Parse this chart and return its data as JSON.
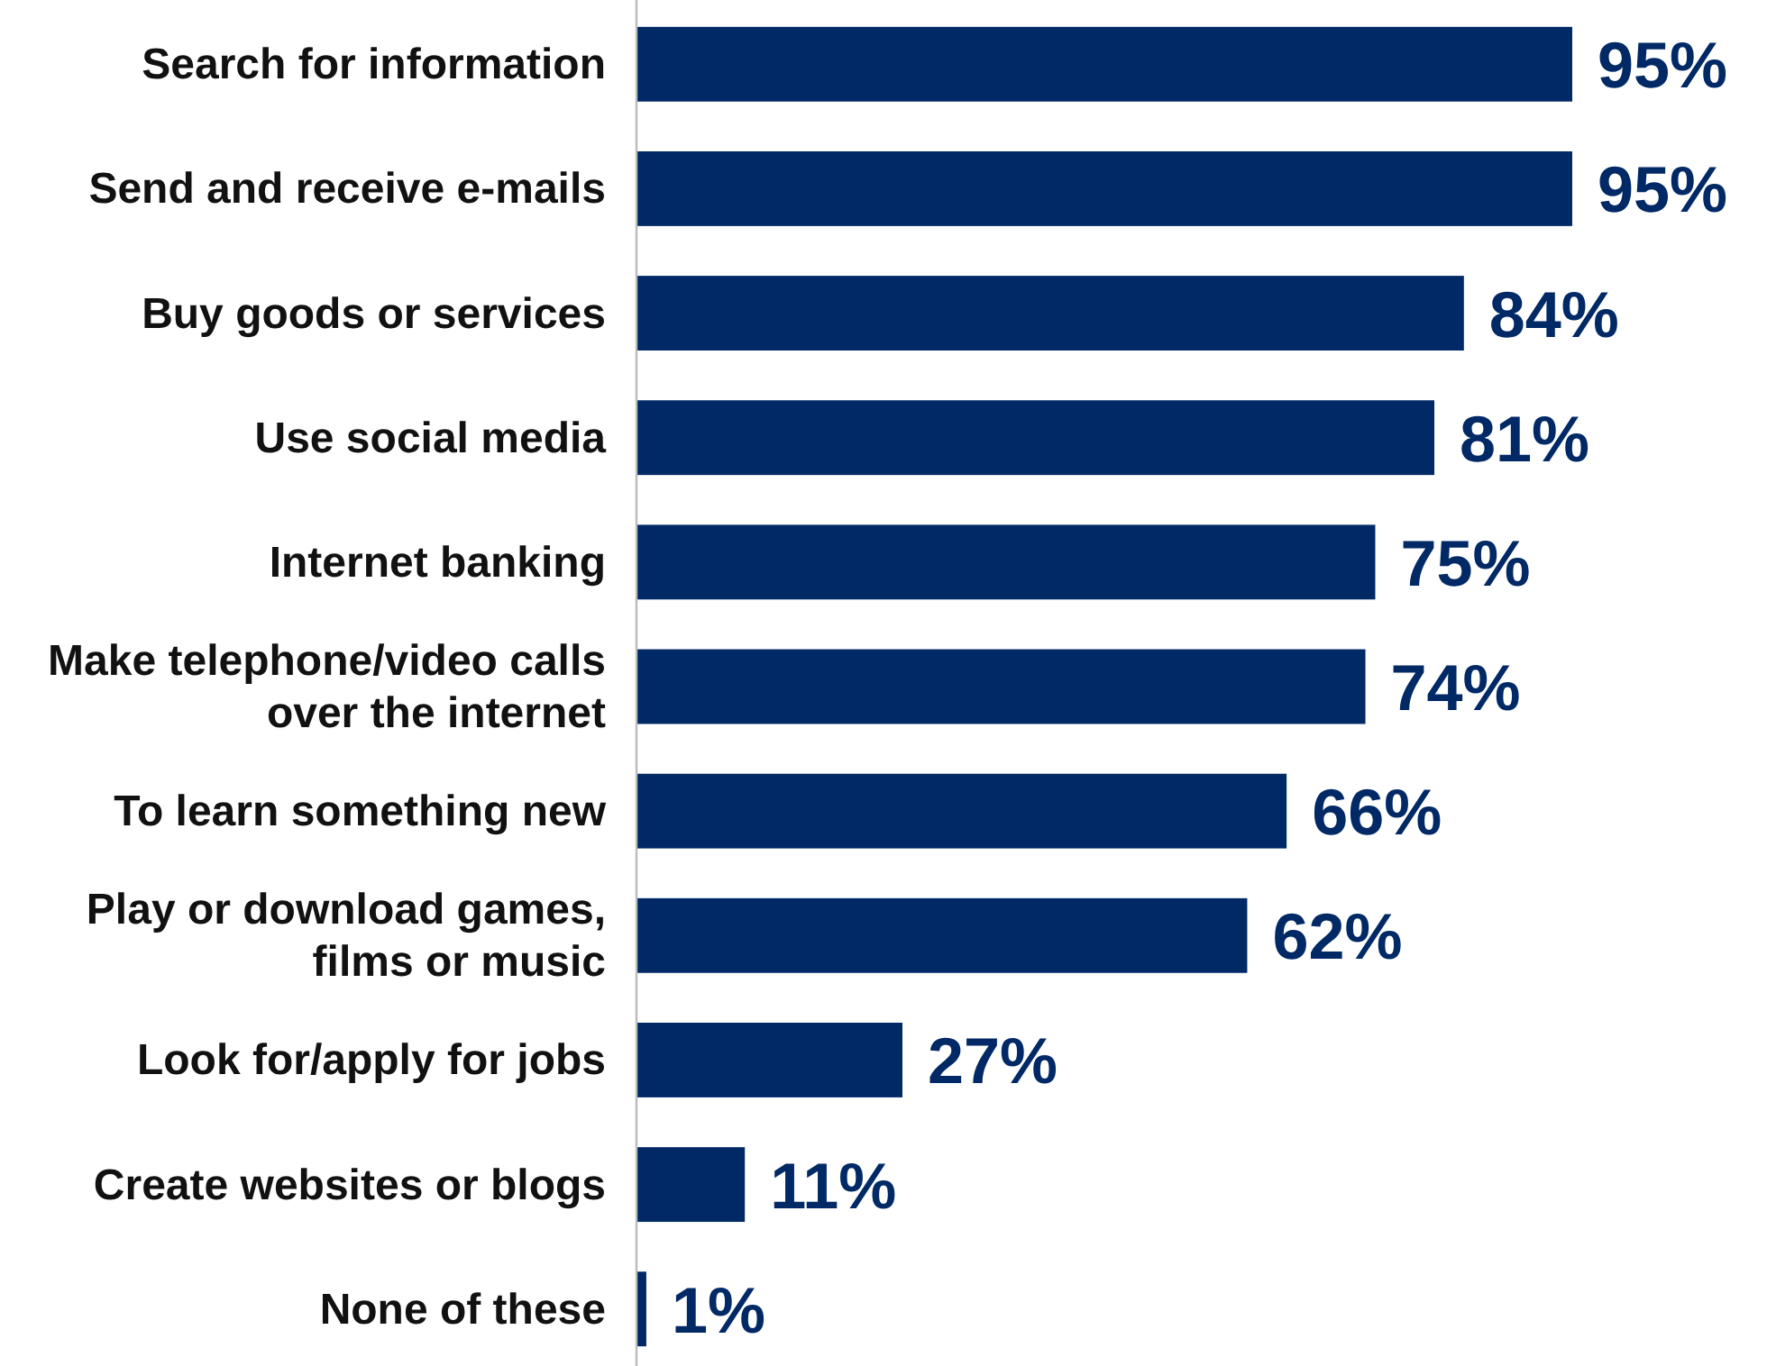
{
  "chart_data": {
    "type": "bar",
    "orientation": "horizontal",
    "categories": [
      "Search for information",
      "Send and receive e-mails",
      "Buy goods or services",
      "Use social media",
      "Internet banking",
      "Make telephone/video calls over the internet",
      "To learn something new",
      "Play or download games, films or music",
      "Look for/apply for jobs",
      "Create websites or blogs",
      "None of these"
    ],
    "values": [
      95,
      95,
      84,
      81,
      75,
      74,
      66,
      62,
      27,
      11,
      1
    ],
    "color": "#002966",
    "data_labels": true,
    "value_labels": [
      "95%",
      "95%",
      "84%",
      "81%",
      "75%",
      "74%",
      "66%",
      "62%",
      "27%",
      "11%",
      "1%"
    ]
  }
}
